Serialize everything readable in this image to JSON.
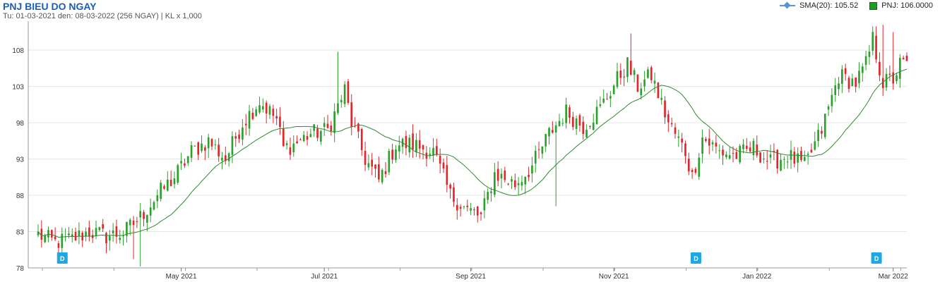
{
  "header": {
    "title": "PNJ BIEU DO NGAY",
    "subtitle": "Tu: 01-03-2021 den: 08-03-2022 (256 NGAY) | KL x 1,000"
  },
  "legend": {
    "sma_label": "SMA(20): 105.52",
    "pnj_label": "PNJ: 106.0000"
  },
  "colors": {
    "up": "#2ca02c",
    "down": "#e0252b",
    "sma": "#2e8b2e",
    "grid": "#e6e6e6",
    "marker": "#1ea7e1"
  },
  "chart_data": {
    "type": "candlestick",
    "ylim": [
      78,
      112
    ],
    "y_ticks": [
      78,
      83,
      88,
      93,
      98,
      103,
      108
    ],
    "x_labels": [
      {
        "label": "May 2021",
        "index": 42
      },
      {
        "label": "Jul 2021",
        "index": 84
      },
      {
        "label": "Sep 2021",
        "index": 127
      },
      {
        "label": "Nov 2021",
        "index": 169
      },
      {
        "label": "Jan 2022",
        "index": 211
      },
      {
        "label": "Mar 2022",
        "index": 251
      }
    ],
    "markers": [
      {
        "label": "D",
        "index": 7
      },
      {
        "label": "D",
        "index": 193
      },
      {
        "label": "D",
        "index": 246
      }
    ],
    "anchors": [
      [
        0,
        82.6
      ],
      [
        5,
        81.5
      ],
      [
        10,
        82.0
      ],
      [
        15,
        83.0
      ],
      [
        20,
        82.4
      ],
      [
        25,
        82.8
      ],
      [
        30,
        85.0
      ],
      [
        35,
        88.0
      ],
      [
        40,
        90.5
      ],
      [
        45,
        94.0
      ],
      [
        50,
        95.5
      ],
      [
        55,
        93.0
      ],
      [
        60,
        98.0
      ],
      [
        65,
        101.0
      ],
      [
        70,
        98.5
      ],
      [
        72,
        94.5
      ],
      [
        75,
        95.0
      ],
      [
        80,
        96.5
      ],
      [
        85,
        97.0
      ],
      [
        90,
        102.5
      ],
      [
        92,
        98.0
      ],
      [
        96,
        93.0
      ],
      [
        100,
        90.0
      ],
      [
        105,
        95.0
      ],
      [
        110,
        95.0
      ],
      [
        116,
        94.0
      ],
      [
        121,
        88.0
      ],
      [
        126,
        86.0
      ],
      [
        130,
        85.0
      ],
      [
        134,
        91.0
      ],
      [
        140,
        89.5
      ],
      [
        145,
        92.0
      ],
      [
        150,
        96.5
      ],
      [
        155,
        99.5
      ],
      [
        160,
        97.5
      ],
      [
        165,
        100.0
      ],
      [
        170,
        104.0
      ],
      [
        173,
        106.0
      ],
      [
        176,
        103.0
      ],
      [
        180,
        104.5
      ],
      [
        185,
        98.0
      ],
      [
        190,
        94.0
      ],
      [
        192,
        90.5
      ],
      [
        195,
        96.0
      ],
      [
        200,
        94.0
      ],
      [
        205,
        93.5
      ],
      [
        210,
        94.5
      ],
      [
        215,
        92.5
      ],
      [
        220,
        93.5
      ],
      [
        225,
        92.0
      ],
      [
        230,
        97.0
      ],
      [
        235,
        104.5
      ],
      [
        240,
        103.5
      ],
      [
        243,
        106.0
      ],
      [
        245,
        109.5
      ],
      [
        248,
        103.5
      ],
      [
        251,
        104.0
      ],
      [
        253,
        106.0
      ],
      [
        255,
        106.0
      ]
    ],
    "sma_name": "SMA(20)",
    "series_name": "PNJ"
  }
}
